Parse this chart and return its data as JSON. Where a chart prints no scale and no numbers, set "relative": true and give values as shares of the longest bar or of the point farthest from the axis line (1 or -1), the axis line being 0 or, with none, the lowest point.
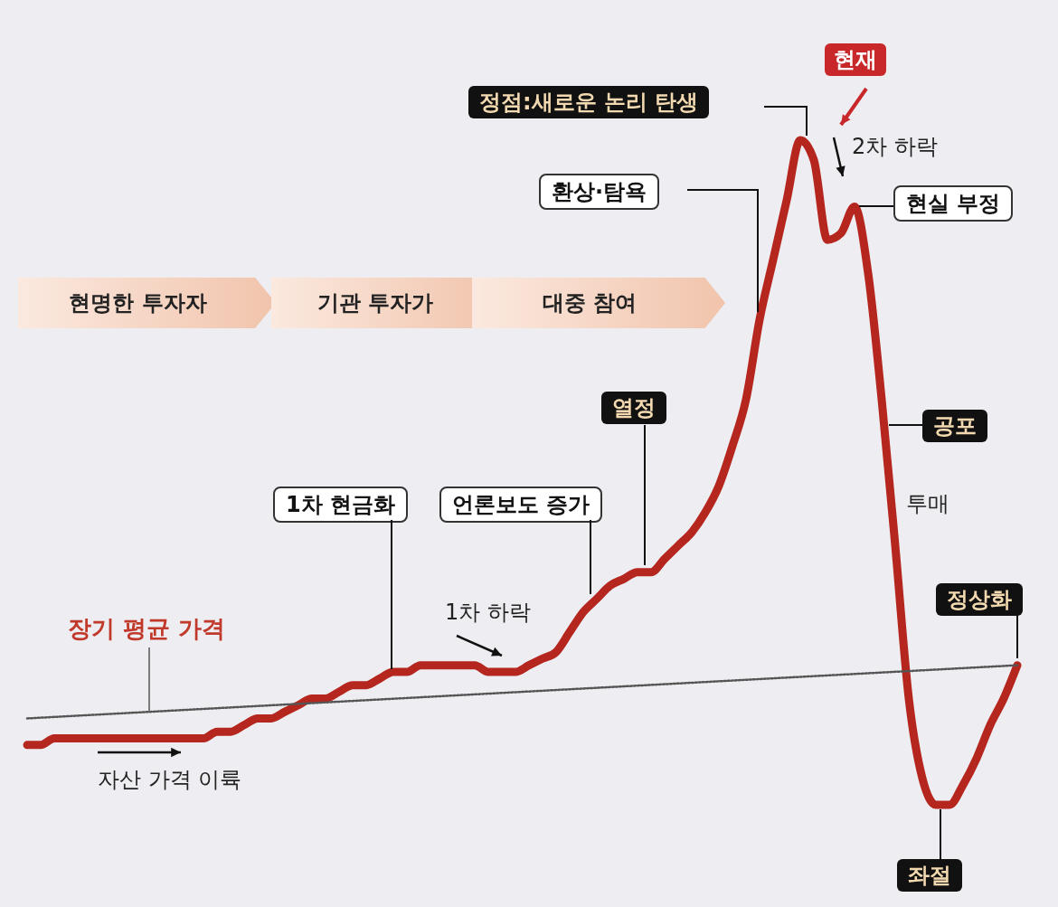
{
  "chart_data": {
    "type": "line",
    "relative": true,
    "categories": [
      null,
      null,
      null,
      null,
      null,
      null,
      null,
      null,
      null,
      null,
      null,
      null,
      null,
      null,
      null,
      null,
      null,
      null,
      null,
      null,
      null,
      null,
      null,
      null,
      null,
      null,
      null,
      null,
      null,
      null,
      null,
      null,
      null,
      null,
      null,
      null,
      null,
      null,
      null,
      null,
      null,
      null,
      null,
      null,
      null,
      null,
      null,
      null,
      null,
      null,
      null,
      null,
      null,
      null,
      null,
      null,
      null,
      null,
      null,
      null,
      null,
      null,
      null,
      null,
      null,
      null,
      null,
      null,
      null,
      null,
      null,
      null,
      null,
      null
    ],
    "series": [
      {
        "color": "#b5261e",
        "line_style": "solid",
        "values": [
          0.09,
          0.09,
          0.1,
          0.1,
          0.1,
          0.1,
          0.1,
          0.1,
          0.1,
          0.1,
          0.1,
          0.1,
          0.1,
          0.1,
          0.11,
          0.11,
          0.12,
          0.13,
          0.13,
          0.14,
          0.15,
          0.16,
          0.16,
          0.17,
          0.18,
          0.18,
          0.19,
          0.2,
          0.2,
          0.21,
          0.21,
          0.21,
          0.21,
          0.21,
          0.2,
          0.2,
          0.2,
          0.21,
          0.22,
          0.23,
          0.26,
          0.29,
          0.31,
          0.33,
          0.34,
          0.35,
          0.35,
          0.37,
          0.39,
          0.41,
          0.44,
          0.48,
          0.54,
          0.61,
          0.73,
          0.82,
          0.91,
          1.0,
          0.97,
          0.85,
          0.86,
          0.9,
          0.8,
          0.61,
          0.39,
          0.16,
          0.04,
          0.0,
          0.0,
          0.03,
          0.07,
          0.12,
          0.16,
          0.21
        ]
      },
      {
        "name": "장기 평균 가격",
        "color": "#555555",
        "line_style": "dotted",
        "values": [
          0.13,
          null,
          null,
          null,
          null,
          null,
          null,
          null,
          null,
          null,
          null,
          null,
          null,
          null,
          null,
          null,
          null,
          null,
          null,
          null,
          null,
          null,
          null,
          null,
          null,
          null,
          null,
          null,
          null,
          null,
          null,
          null,
          null,
          null,
          null,
          null,
          null,
          null,
          null,
          null,
          null,
          null,
          null,
          null,
          null,
          null,
          null,
          null,
          null,
          null,
          null,
          null,
          null,
          null,
          null,
          null,
          null,
          null,
          null,
          null,
          null,
          null,
          null,
          null,
          null,
          null,
          null,
          null,
          null,
          null,
          null,
          null,
          null,
          0.21
        ]
      }
    ],
    "annotations": [
      "현재",
      "정점:새로운 논리 탄생",
      "2차 하락",
      "환상·탐욕",
      "현실 부정",
      "현명한 투자자",
      "기관 투자가",
      "대중 참여",
      "열정",
      "공포",
      "투매",
      "1차 현금화",
      "언론보도 증가",
      "1차 하락",
      "정상화",
      "자산 가격 이륙",
      "좌절"
    ]
  }
}
